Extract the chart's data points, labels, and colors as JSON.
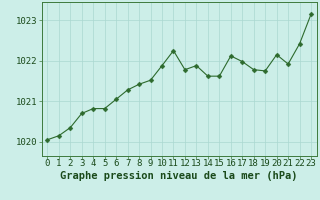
{
  "x": [
    0,
    1,
    2,
    3,
    4,
    5,
    6,
    7,
    8,
    9,
    10,
    11,
    12,
    13,
    14,
    15,
    16,
    17,
    18,
    19,
    20,
    21,
    22,
    23
  ],
  "y": [
    1020.05,
    1020.15,
    1020.35,
    1020.7,
    1020.82,
    1020.82,
    1021.05,
    1021.28,
    1021.42,
    1021.52,
    1021.88,
    1022.25,
    1021.78,
    1021.88,
    1021.62,
    1021.62,
    1022.12,
    1021.98,
    1021.78,
    1021.75,
    1022.15,
    1021.92,
    1022.42,
    1023.15
  ],
  "line_color": "#2d6a2d",
  "marker": "D",
  "marker_size": 2.5,
  "bg_color": "#cceee8",
  "grid_color": "#aad8d0",
  "xlabel": "Graphe pression niveau de la mer (hPa)",
  "xlabel_color": "#1a4a1a",
  "xlabel_fontsize": 7.5,
  "ylabel_ticks": [
    1020,
    1021,
    1022,
    1023
  ],
  "ylim": [
    1019.65,
    1023.45
  ],
  "xlim": [
    -0.5,
    23.5
  ],
  "tick_fontsize": 6.5,
  "tick_color": "#1a4a1a",
  "spine_color": "#3d7a3d"
}
